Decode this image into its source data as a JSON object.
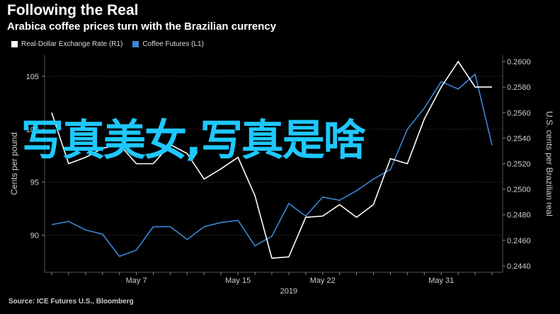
{
  "header": {
    "title": "Following the Real",
    "subtitle": "Arabica coffee prices turn with the Brazilian currency"
  },
  "legend": {
    "items": [
      {
        "label": "Real-Dollar Exchange Rate (R1)",
        "color": "#ffffff"
      },
      {
        "label": "Coffee Futures (L1)",
        "color": "#3a86d6"
      }
    ]
  },
  "source": "Source: ICE Futures U.S., Bloomberg",
  "overlay_text": "写真美女,写真是啥",
  "chart_data": {
    "type": "line",
    "x": [
      "Apr 30",
      "May 1",
      "May 2",
      "May 3",
      "May 4",
      "May 7",
      "May 8",
      "May 9",
      "May 10",
      "May 11",
      "May 14",
      "May 15",
      "May 16",
      "May 17",
      "May 18",
      "May 21",
      "May 22",
      "May 23",
      "May 24",
      "May 25",
      "May 28",
      "May 29",
      "May 30",
      "May 31",
      "Jun 1",
      "Jun 4",
      "Jun 5"
    ],
    "x_tick_labels": [
      "May 7",
      "May 15",
      "May 22",
      "May 31"
    ],
    "x_tick_year": "2019",
    "left_axis": {
      "label": "Cents per pound",
      "ticks": [
        "105",
        "100",
        "95",
        "90"
      ],
      "ylim": [
        86.5,
        107
      ]
    },
    "right_axis": {
      "label": "U.S. cents per Brazilian real",
      "ticks": [
        "0.2600",
        "0.2580",
        "0.2560",
        "0.2540",
        "0.2520",
        "0.2500",
        "0.2480",
        "0.2460",
        "0.2440"
      ],
      "ylim": [
        0.2435,
        0.2605
      ]
    },
    "series": [
      {
        "name": "Coffee Futures (L1)",
        "axis": "left",
        "color": "#3a86d6",
        "values": [
          91.0,
          91.3,
          90.5,
          90.1,
          88.0,
          88.6,
          90.8,
          90.8,
          89.6,
          90.8,
          91.2,
          91.4,
          89.0,
          89.9,
          93.0,
          91.8,
          93.6,
          93.3,
          94.2,
          95.3,
          96.2,
          100.0,
          102.0,
          104.5,
          103.8,
          105.2,
          98.5
        ]
      },
      {
        "name": "Real-Dollar Exchange Rate (R1)",
        "axis": "right",
        "color": "#ffffff",
        "values": [
          0.256,
          0.252,
          0.2525,
          0.2532,
          0.2535,
          0.252,
          0.252,
          0.2535,
          0.2528,
          0.2508,
          0.2516,
          0.2525,
          0.2495,
          0.2446,
          0.2447,
          0.2478,
          0.2479,
          0.2488,
          0.2478,
          0.2488,
          0.2524,
          0.252,
          0.2555,
          0.258,
          0.26,
          0.258,
          0.258
        ]
      }
    ]
  }
}
